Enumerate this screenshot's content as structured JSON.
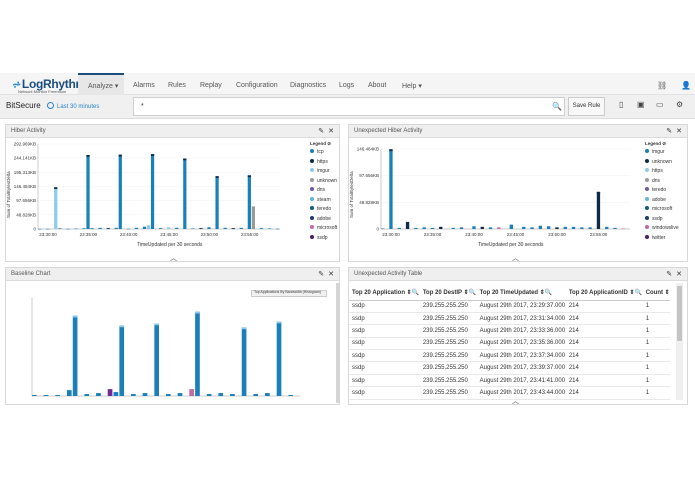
{
  "app": {
    "logo": "LogRhythm",
    "logo_sub": "Network Monitor Freemium"
  },
  "nav": {
    "items": [
      {
        "label": "Analyze ▾",
        "active": true
      },
      {
        "label": "Alarms"
      },
      {
        "label": "Rules"
      },
      {
        "label": "Replay"
      },
      {
        "label": "Configuration"
      },
      {
        "label": "Diagnostics"
      },
      {
        "label": "Logs"
      },
      {
        "label": "About"
      },
      {
        "label": "Help ▾"
      }
    ],
    "icons": [
      "network-icon",
      "user-icon"
    ]
  },
  "search": {
    "title": "BitSecure",
    "time_range": "Last 30 minutes",
    "query": "*",
    "save_label": "Save Rule"
  },
  "panels": {
    "hiber": {
      "title": "Hiber Activity",
      "ylabel": "Sum of TotalBytesDelta",
      "xlabel": "TimeUpdated per 30 seconds",
      "legend_title": "Legend ⊘",
      "legend": [
        {
          "name": "tcp",
          "color": "#1b7fba"
        },
        {
          "name": "https",
          "color": "#0e2a47"
        },
        {
          "name": "imgur",
          "color": "#8fcbe8"
        },
        {
          "name": "unknown",
          "color": "#9a9a9a"
        },
        {
          "name": "dns",
          "color": "#6f5b9e"
        },
        {
          "name": "steam",
          "color": "#64b6d6"
        },
        {
          "name": "teredo",
          "color": "#135c7e"
        },
        {
          "name": "adobe",
          "color": "#1f3b6b"
        },
        {
          "name": "microsoft",
          "color": "#c06aa7"
        },
        {
          "name": "ssdp",
          "color": "#4b1f63"
        }
      ]
    },
    "unexpected_hiber": {
      "title": "Unexpected Hiber Activity",
      "ylabel": "Sum of TotalBytesDelta",
      "xlabel": "TimeUpdated per 30 seconds",
      "legend_title": "Legend ⊘",
      "legend": [
        {
          "name": "imgur",
          "color": "#1b7fba"
        },
        {
          "name": "unknown",
          "color": "#0e2a47"
        },
        {
          "name": "https",
          "color": "#8fcbe8"
        },
        {
          "name": "dns",
          "color": "#9a9a9a"
        },
        {
          "name": "teredo",
          "color": "#6f5b9e"
        },
        {
          "name": "adobe",
          "color": "#64b6d6"
        },
        {
          "name": "microsoft",
          "color": "#135c7e"
        },
        {
          "name": "ssdp",
          "color": "#1f3b6b"
        },
        {
          "name": "windowslive",
          "color": "#c06aa7"
        },
        {
          "name": "twitter",
          "color": "#4b1f63"
        }
      ]
    },
    "baseline": {
      "title": "Baseline Chart",
      "inner_title": "Top Applications By Bandwidth (Histogram)"
    },
    "table": {
      "title": "Unexpected Activity Table",
      "columns": [
        "Top 20 Application ⇕🔍",
        "Top 20 DestIP ⇕🔍",
        "Top 20 TimeUpdated ⇕🔍",
        "Top 20 ApplicationID ⇕🔍",
        "Count ⇕"
      ],
      "rows": [
        [
          "ssdp",
          "239.255.255.250",
          "August 29th 2017, 23:29:37.000",
          "214",
          "1"
        ],
        [
          "ssdp",
          "239.255.255.250",
          "August 29th 2017, 23:31:34.000",
          "214",
          "1"
        ],
        [
          "ssdp",
          "239.255.255.250",
          "August 29th 2017, 23:33:36.000",
          "214",
          "1"
        ],
        [
          "ssdp",
          "239.255.255.250",
          "August 29th 2017, 23:35:36.000",
          "214",
          "1"
        ],
        [
          "ssdp",
          "239.255.255.250",
          "August 29th 2017, 23:37:34.000",
          "214",
          "1"
        ],
        [
          "ssdp",
          "239.255.255.250",
          "August 29th 2017, 23:39:37.000",
          "214",
          "1"
        ],
        [
          "ssdp",
          "239.255.255.250",
          "August 29th 2017, 23:41:41.000",
          "214",
          "1"
        ],
        [
          "ssdp",
          "239.255.255.250",
          "August 29th 2017, 23:43:44.000",
          "214",
          "1"
        ]
      ]
    }
  },
  "chart_data": [
    {
      "type": "bar",
      "title": "Hiber Activity",
      "xlabel": "TimeUpdated per 30 seconds",
      "ylabel": "Sum of TotalBytesDelta",
      "ylim": [
        0,
        292.969
      ],
      "y_unit": "KB",
      "yticks": [
        "0",
        "48.828KB",
        "97.656KB",
        "146.484KB",
        "195.313KB",
        "244.141KB",
        "292.969KB"
      ],
      "xticks": [
        "23:30:00",
        "23:35:00",
        "23:40:00",
        "23:45:00",
        "23:50:00",
        "23:55:00"
      ],
      "bars": [
        {
          "x": 0,
          "total": 0.4,
          "series": "tcp"
        },
        {
          "x": 2,
          "total": 0.5,
          "series": "tcp"
        },
        {
          "x": 4,
          "total": 144,
          "series": "imgur"
        },
        {
          "x": 5,
          "total": 2.5,
          "series": "tcp"
        },
        {
          "x": 7,
          "total": 0.8,
          "series": "tcp"
        },
        {
          "x": 9,
          "total": 1.5,
          "series": "tcp"
        },
        {
          "x": 11,
          "total": 2.5,
          "series": "tcp"
        },
        {
          "x": 12,
          "total": 255,
          "series": "tcp"
        },
        {
          "x": 13,
          "total": 3,
          "series": "tcp"
        },
        {
          "x": 15,
          "total": 4,
          "series": "tcp"
        },
        {
          "x": 17,
          "total": 3,
          "series": "https"
        },
        {
          "x": 19,
          "total": 4,
          "series": "tcp"
        },
        {
          "x": 20,
          "total": 256,
          "series": "tcp"
        },
        {
          "x": 22,
          "total": 1,
          "series": "tcp"
        },
        {
          "x": 24,
          "total": 4,
          "series": "tcp"
        },
        {
          "x": 26,
          "total": 8,
          "series": "tcp"
        },
        {
          "x": 27,
          "total": 13,
          "series": "imgur"
        },
        {
          "x": 28,
          "total": 258,
          "series": "tcp"
        },
        {
          "x": 30,
          "total": 3,
          "series": "tcp"
        },
        {
          "x": 32,
          "total": 6,
          "series": "imgur"
        },
        {
          "x": 34,
          "total": 4,
          "series": "tcp"
        },
        {
          "x": 36,
          "total": 243,
          "series": "tcp"
        },
        {
          "x": 38,
          "total": 2,
          "series": "tcp"
        },
        {
          "x": 40,
          "total": 3,
          "series": "https"
        },
        {
          "x": 42,
          "total": 6,
          "series": "tcp"
        },
        {
          "x": 44,
          "total": 182,
          "series": "tcp"
        },
        {
          "x": 46,
          "total": 4,
          "series": "tcp"
        },
        {
          "x": 48,
          "total": 3,
          "series": "https"
        },
        {
          "x": 50,
          "total": 4,
          "series": "tcp"
        },
        {
          "x": 52,
          "total": 185,
          "series": "tcp"
        },
        {
          "x": 53,
          "total": 78,
          "series": "unknown"
        },
        {
          "x": 55,
          "total": 3,
          "series": "tcp"
        },
        {
          "x": 57,
          "total": 2,
          "series": "tcp"
        },
        {
          "x": 59,
          "total": 1,
          "series": "tcp"
        }
      ]
    },
    {
      "type": "bar",
      "title": "Unexpected Hiber Activity",
      "xlabel": "TimeUpdated per 30 seconds",
      "ylabel": "Sum of TotalBytesDelta",
      "ylim": [
        0,
        146.484
      ],
      "y_unit": "KB",
      "yticks": [
        "0",
        "48.828KB",
        "97.656KB",
        "146.484KB"
      ],
      "xticks": [
        "23:30:00",
        "23:35:00",
        "23:40:00",
        "23:45:00",
        "23:50:00",
        "23:55:00"
      ],
      "bars": [
        {
          "x": 0,
          "total": 1,
          "series": "imgur"
        },
        {
          "x": 2,
          "total": 146,
          "series": "imgur"
        },
        {
          "x": 4,
          "total": 2,
          "series": "imgur"
        },
        {
          "x": 6,
          "total": 13,
          "series": "unknown"
        },
        {
          "x": 8,
          "total": 2,
          "series": "imgur"
        },
        {
          "x": 10,
          "total": 3,
          "series": "imgur"
        },
        {
          "x": 12,
          "total": 2,
          "series": "imgur"
        },
        {
          "x": 14,
          "total": 4,
          "series": "unknown"
        },
        {
          "x": 17,
          "total": 2,
          "series": "imgur"
        },
        {
          "x": 19,
          "total": 3,
          "series": "imgur"
        },
        {
          "x": 22,
          "total": 5,
          "series": "imgur"
        },
        {
          "x": 24,
          "total": 4,
          "series": "unknown"
        },
        {
          "x": 26,
          "total": 3,
          "series": "imgur"
        },
        {
          "x": 28,
          "total": 3,
          "series": "windowslive"
        },
        {
          "x": 31,
          "total": 8,
          "series": "imgur"
        },
        {
          "x": 34,
          "total": 4,
          "series": "imgur"
        },
        {
          "x": 36,
          "total": 3,
          "series": "imgur"
        },
        {
          "x": 38,
          "total": 6,
          "series": "imgur"
        },
        {
          "x": 40,
          "total": 5,
          "series": "imgur"
        },
        {
          "x": 42,
          "total": 3,
          "series": "unknown"
        },
        {
          "x": 44,
          "total": 4,
          "series": "imgur"
        },
        {
          "x": 46,
          "total": 4,
          "series": "imgur"
        },
        {
          "x": 48,
          "total": 3,
          "series": "imgur"
        },
        {
          "x": 50,
          "total": 3,
          "series": "imgur"
        },
        {
          "x": 52,
          "total": 68,
          "series": "unknown"
        },
        {
          "x": 54,
          "total": 4,
          "series": "imgur"
        },
        {
          "x": 56,
          "total": 2,
          "series": "imgur"
        },
        {
          "x": 58,
          "total": 1,
          "series": "windowslive"
        }
      ]
    },
    {
      "type": "bar",
      "title": "Top Applications By Bandwidth (Histogram)",
      "ylim": [
        0,
        100
      ],
      "bars": [
        {
          "x": 0,
          "total": 1,
          "series": "a"
        },
        {
          "x": 2,
          "total": 1,
          "series": "a"
        },
        {
          "x": 4,
          "total": 1,
          "series": "a"
        },
        {
          "x": 6,
          "total": 6,
          "series": "a"
        },
        {
          "x": 7,
          "total": 82,
          "series": "a"
        },
        {
          "x": 9,
          "total": 2,
          "series": "a"
        },
        {
          "x": 11,
          "total": 3,
          "series": "a"
        },
        {
          "x": 13,
          "total": 7,
          "series": "d"
        },
        {
          "x": 14,
          "total": 4,
          "series": "a"
        },
        {
          "x": 15,
          "total": 72,
          "series": "a"
        },
        {
          "x": 17,
          "total": 2,
          "series": "a"
        },
        {
          "x": 19,
          "total": 3,
          "series": "a"
        },
        {
          "x": 21,
          "total": 74,
          "series": "a"
        },
        {
          "x": 23,
          "total": 2,
          "series": "a"
        },
        {
          "x": 25,
          "total": 3,
          "series": "a"
        },
        {
          "x": 27,
          "total": 7,
          "series": "h"
        },
        {
          "x": 28,
          "total": 86,
          "series": "a"
        },
        {
          "x": 30,
          "total": 2,
          "series": "a"
        },
        {
          "x": 32,
          "total": 3,
          "series": "a"
        },
        {
          "x": 34,
          "total": 2,
          "series": "a"
        },
        {
          "x": 36,
          "total": 70,
          "series": "a"
        },
        {
          "x": 38,
          "total": 2,
          "series": "a"
        },
        {
          "x": 40,
          "total": 3,
          "series": "a"
        },
        {
          "x": 42,
          "total": 76,
          "series": "a"
        },
        {
          "x": 44,
          "total": 1,
          "series": "a"
        }
      ]
    }
  ]
}
